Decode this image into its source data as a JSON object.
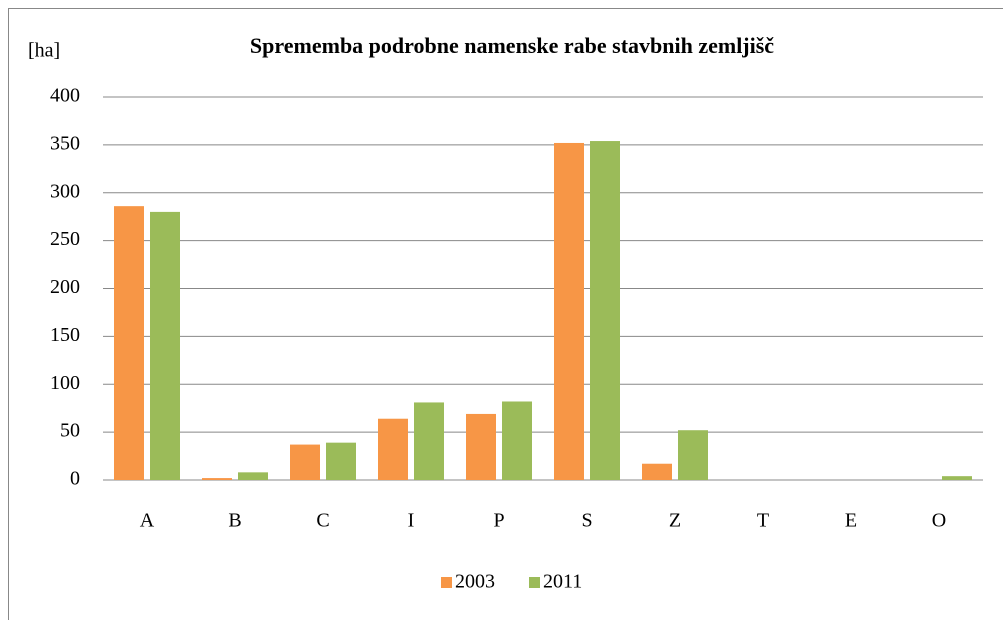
{
  "chart_data": {
    "type": "bar",
    "title": "Sprememba podrobne namenske rabe stavbnih zemljišč",
    "y_label": "[ha]",
    "categories": [
      "A",
      "B",
      "C",
      "I",
      "P",
      "S",
      "Z",
      "T",
      "E",
      "O"
    ],
    "series": [
      {
        "name": "2003",
        "color": "#f79646",
        "values": [
          286,
          2,
          37,
          64,
          69,
          352,
          17,
          0,
          0,
          0
        ]
      },
      {
        "name": "2011",
        "color": "#9bbb59",
        "values": [
          280,
          8,
          39,
          81,
          82,
          354,
          52,
          0,
          0,
          4
        ]
      }
    ],
    "ylim": [
      0,
      400
    ],
    "yticks": [
      0,
      50,
      100,
      150,
      200,
      250,
      300,
      350,
      400
    ],
    "grid": true,
    "legend": "bottom"
  }
}
